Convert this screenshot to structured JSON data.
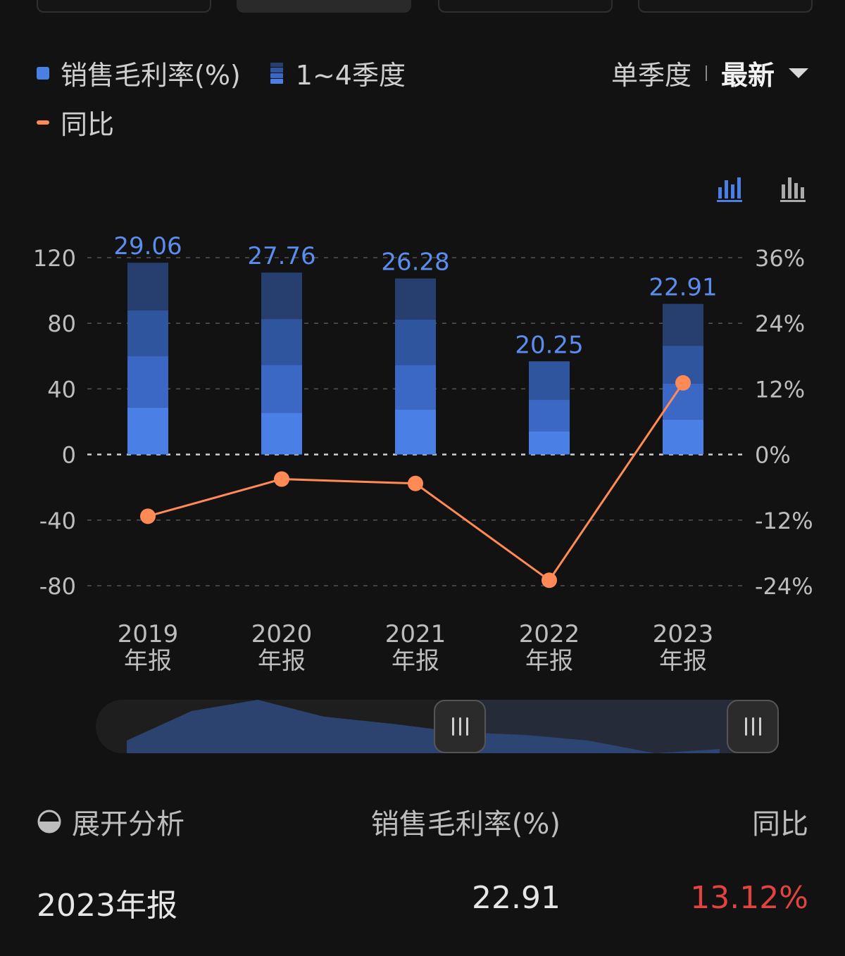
{
  "legend": {
    "bar_series": "销售毛利率(%)",
    "quarter_series": "1~4季度",
    "line_series": "同比",
    "bar_color": "#4a7fe6",
    "line_color": "#ff8a55",
    "quarter_colors": [
      "#4a7fe6",
      "#3b68c4",
      "#30559f",
      "#273f6e"
    ]
  },
  "mode_switch": {
    "option_single": "单季度",
    "option_latest": "最新"
  },
  "icons": {
    "chart_stacked": "bar-chart-icon",
    "chart_grouped": "column-chart-icon",
    "expand": "pie-icon",
    "active_color": "#4a7fe6"
  },
  "chart_data": {
    "type": "bar",
    "categories": [
      "2019\n年报",
      "2020\n年报",
      "2021\n年报",
      "2022\n年报",
      "2023\n年报"
    ],
    "left_axis": {
      "ticks": [
        "120",
        "80",
        "40",
        "0",
        "-40",
        "-80"
      ],
      "ylim": [
        -80,
        120
      ]
    },
    "right_axis": {
      "ticks": [
        "36%",
        "24%",
        "12%",
        "0%",
        "-12%",
        "-24%"
      ],
      "ylim": [
        -24,
        36
      ]
    },
    "series": [
      {
        "name": "销售毛利率(%)",
        "kind": "stacked-bar",
        "totals": [
          116.9,
          110.9,
          107.3,
          56.8,
          91.8
        ],
        "stack": [
          [
            28.7,
            31.2,
            28.0,
            29.0
          ],
          [
            25.4,
            29.3,
            27.9,
            28.3
          ],
          [
            27.3,
            27.3,
            27.7,
            25.0
          ],
          [
            14.3,
            19.0,
            23.5,
            0
          ],
          [
            21.4,
            21.9,
            23.0,
            25.5
          ]
        ],
        "labels": [
          "29.06",
          "27.76",
          "26.28",
          "20.25",
          "22.91"
        ]
      },
      {
        "name": "同比",
        "kind": "line",
        "axis": "right",
        "values": [
          -11.3,
          -4.5,
          -5.3,
          -23.0,
          13.1
        ]
      }
    ],
    "grid": true,
    "legend_position": "top-left"
  },
  "table": {
    "expand_label": "展开分析",
    "col_metric": "销售毛利率(%)",
    "col_yoy": "同比",
    "rows": [
      {
        "period": "2023年报",
        "value": "22.91",
        "yoy": "13.12%",
        "yoy_color": "#e0443f"
      }
    ]
  },
  "range_slider": {
    "start_fraction": 0.53,
    "end_fraction": 1.0
  }
}
